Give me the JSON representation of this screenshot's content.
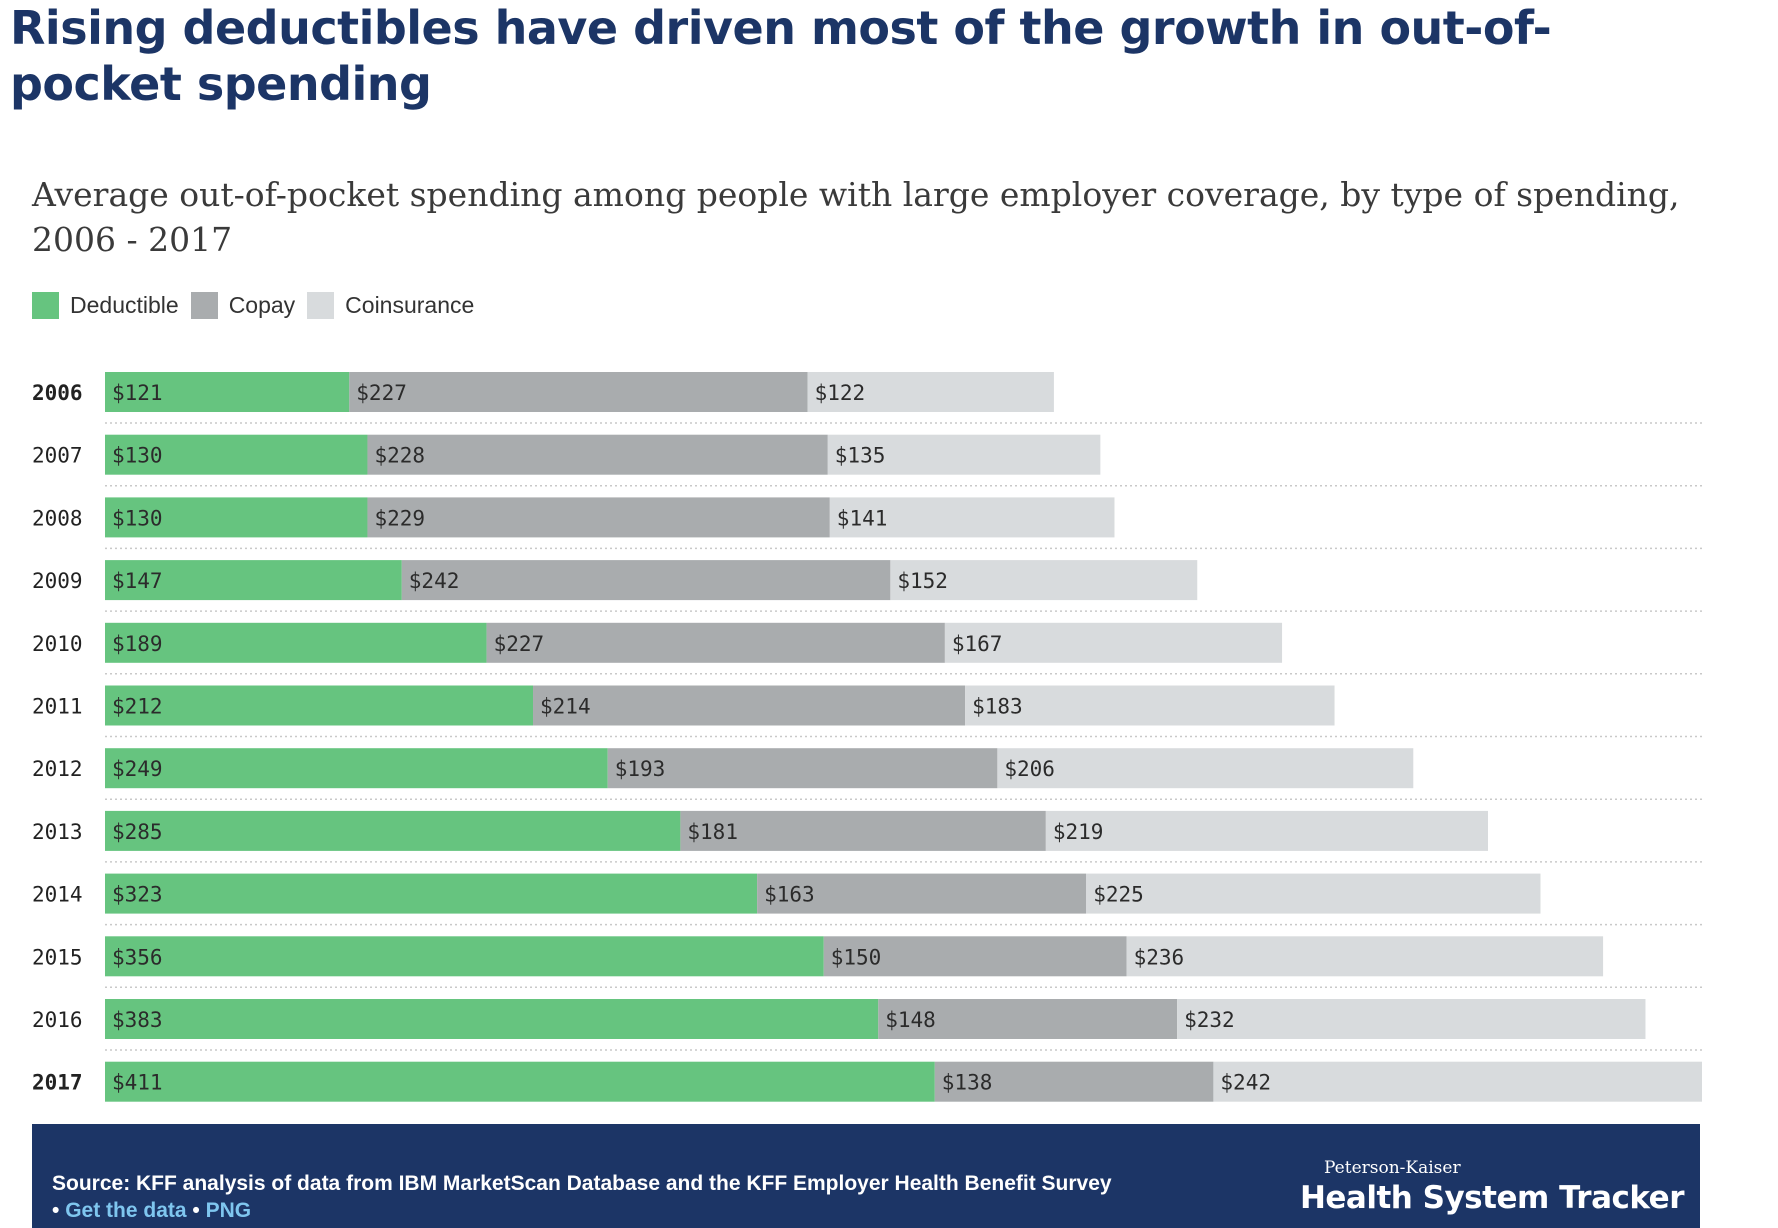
{
  "headline": "Rising deductibles have driven most of the growth in out-of-pocket spending",
  "subtitle": "Average out-of-pocket spending among people with large employer coverage, by type of spending, 2006 - 2017",
  "colors": {
    "deductible": "#66c47f",
    "copay": "#a9acae",
    "coinsurance": "#d8dbdd",
    "brand": "#1c3566",
    "link": "#7fc6ef"
  },
  "legend": [
    {
      "label": "Deductible",
      "color": "#66c47f"
    },
    {
      "label": "Copay",
      "color": "#a9acae"
    },
    {
      "label": "Coinsurance",
      "color": "#d8dbdd"
    }
  ],
  "chart_data": {
    "type": "bar",
    "orientation": "horizontal",
    "stacked": true,
    "categories": [
      "2006",
      "2007",
      "2008",
      "2009",
      "2010",
      "2011",
      "2012",
      "2013",
      "2014",
      "2015",
      "2016",
      "2017"
    ],
    "bold_categories": [
      "2006",
      "2017"
    ],
    "series": [
      {
        "name": "Deductible",
        "values": [
          121,
          130,
          130,
          147,
          189,
          212,
          249,
          285,
          323,
          356,
          383,
          411
        ]
      },
      {
        "name": "Copay",
        "values": [
          227,
          228,
          229,
          242,
          227,
          214,
          193,
          181,
          163,
          150,
          148,
          138
        ]
      },
      {
        "name": "Coinsurance",
        "values": [
          122,
          135,
          141,
          152,
          167,
          183,
          206,
          219,
          225,
          236,
          232,
          242
        ]
      }
    ],
    "value_prefix": "$",
    "xlabel": "",
    "ylabel": "",
    "xlim": [
      0,
      791
    ],
    "legend_position": "top-left",
    "grid": false
  },
  "footer": {
    "source": "Source: KFF analysis of data from IBM MarketScan Database and the KFF Employer Health Benefit Survey",
    "bullet": "•",
    "link_data": "Get the data",
    "link_png": "PNG",
    "brand_small": "Peterson-Kaiser",
    "brand_big": "Health System Tracker"
  }
}
